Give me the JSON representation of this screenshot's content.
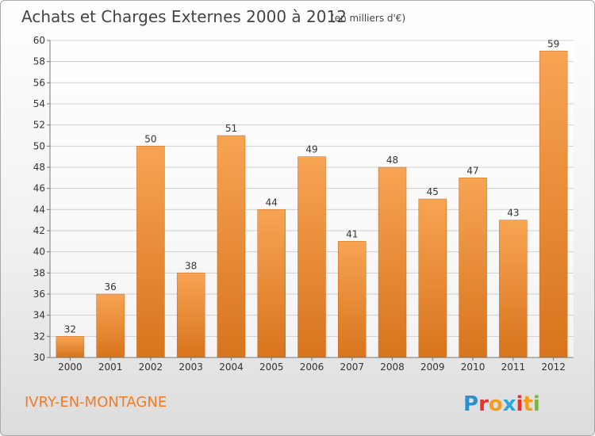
{
  "title": "Achats et Charges Externes 2000 à 2012",
  "subtitle": "(en milliers d'€)",
  "commune": "IVRY-EN-MONTAGNE",
  "logo": {
    "text": "Proxiti",
    "letter_colors": [
      "#2f8fcd",
      "#e8332a",
      "#f39c1f",
      "#2aa8d8",
      "#e8332a",
      "#f39c1f",
      "#7cb342"
    ]
  },
  "colors": {
    "bar_light": "#f7a453",
    "bar_dark": "#d8741d",
    "commune_text": "#ee7d2a"
  },
  "chart_data": {
    "type": "bar",
    "categories": [
      "2000",
      "2001",
      "2002",
      "2003",
      "2004",
      "2005",
      "2006",
      "2007",
      "2008",
      "2009",
      "2010",
      "2011",
      "2012"
    ],
    "values": [
      32,
      36,
      50,
      38,
      51,
      44,
      49,
      41,
      48,
      45,
      47,
      43,
      59
    ],
    "ylim": [
      30,
      60
    ],
    "yticks": [
      30,
      32,
      34,
      36,
      38,
      40,
      42,
      44,
      46,
      48,
      50,
      52,
      54,
      56,
      58,
      60
    ],
    "grid": true,
    "data_labels": true
  }
}
